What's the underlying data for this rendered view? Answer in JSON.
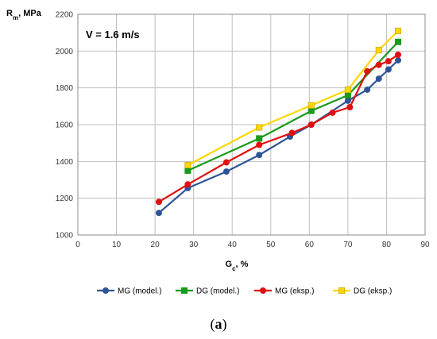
{
  "chart_data": {
    "type": "line",
    "ylabel_main": "R",
    "ylabel_sub": "m",
    "ylabel_rest": ", MPa",
    "xlabel_main": "G",
    "xlabel_sub": "c",
    "xlabel_rest": ", %",
    "annotation": "V = 1.6 m/s",
    "xlim": [
      0,
      90
    ],
    "ylim": [
      1000,
      2200
    ],
    "xticks": [
      "0",
      "10",
      "20",
      "30",
      "40",
      "50",
      "60",
      "70",
      "80",
      "90"
    ],
    "yticks": [
      "1000",
      "1200",
      "1400",
      "1600",
      "1800",
      "2000",
      "2200"
    ],
    "grid": true,
    "legend_position": "bottom",
    "series": [
      {
        "name": "MG (model.)",
        "color": "#2f5496",
        "marker": "circle",
        "x": [
          21,
          28.5,
          38.5,
          47,
          55,
          60.5,
          70,
          75,
          78,
          80.5,
          83
        ],
        "y": [
          1120,
          1255,
          1345,
          1435,
          1535,
          1600,
          1730,
          1790,
          1850,
          1900,
          1950
        ]
      },
      {
        "name": "DG (model.)",
        "color": "#1a9a1a",
        "marker": "square",
        "x": [
          28.5,
          47,
          60.5,
          70,
          83
        ],
        "y": [
          1350,
          1525,
          1675,
          1760,
          2050
        ]
      },
      {
        "name": "MG (eksp.)",
        "color": "#e01010",
        "marker": "circle",
        "x": [
          21,
          28.5,
          38.5,
          47,
          55.5,
          60.5,
          66,
          70.5,
          75,
          78,
          80.5,
          83
        ],
        "y": [
          1180,
          1275,
          1395,
          1490,
          1555,
          1600,
          1665,
          1695,
          1890,
          1925,
          1945,
          1980
        ]
      },
      {
        "name": "DG (eksp.)",
        "color": "#ffd700",
        "marker": "square",
        "x": [
          28.5,
          47,
          60.5,
          70,
          78,
          83
        ],
        "y": [
          1380,
          1585,
          1705,
          1790,
          2005,
          2110
        ]
      }
    ]
  },
  "caption": {
    "open": "(",
    "letter": "a",
    "close": ")"
  }
}
